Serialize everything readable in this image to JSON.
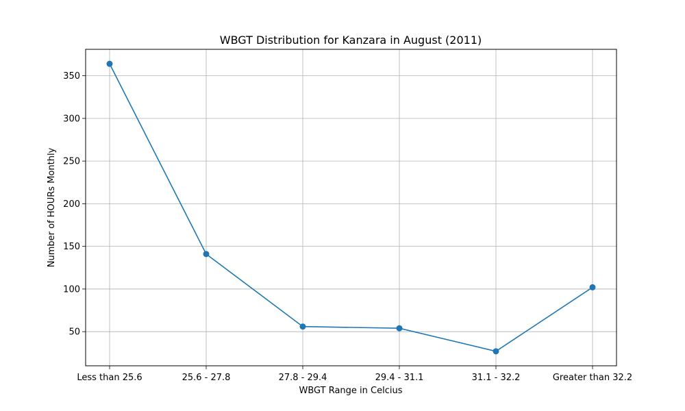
{
  "chart_data": {
    "type": "line",
    "title": "WBGT Distribution for Kanzara in August (2011)",
    "xlabel": "WBGT Range in Celcius",
    "ylabel": "Number of HOURs Monthly",
    "categories": [
      "Less than 25.6",
      "25.6 - 27.8",
      "27.8 - 29.4",
      "29.4 - 31.1",
      "31.1 - 32.2",
      "Greater than 32.2"
    ],
    "series": [
      {
        "values": [
          364,
          141,
          56,
          54,
          27,
          102
        ]
      }
    ],
    "ylim": [
      10,
      381
    ],
    "yticks": [
      50,
      100,
      150,
      200,
      250,
      300,
      350
    ],
    "grid": true,
    "color": "#1f77b4"
  }
}
